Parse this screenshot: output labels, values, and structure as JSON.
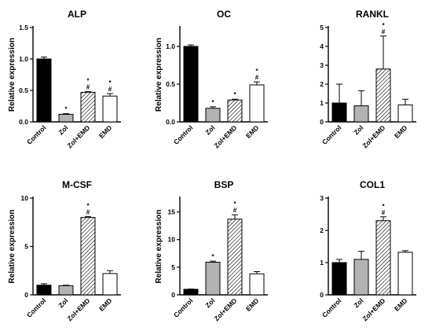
{
  "colors": {
    "control": "#000000",
    "zol": "#b3b3b3",
    "zol_emd": "hatched",
    "emd": "#ffffff",
    "axis": "#000000"
  },
  "chart_data": [
    {
      "type": "bar",
      "title": "ALP",
      "ylabel": "Relative expression",
      "categories": [
        "Control",
        "Zol",
        "Zol+EMD",
        "EMD"
      ],
      "values": [
        1.0,
        0.12,
        0.47,
        0.41
      ],
      "errors": [
        0.03,
        0.01,
        0.01,
        0.04
      ],
      "annotations": [
        "",
        "*",
        "*\n#",
        "*\n#"
      ],
      "ylim": [
        0,
        1.5
      ],
      "yticks": [
        "0.0",
        "0.5",
        "1.0",
        "1.5"
      ]
    },
    {
      "type": "bar",
      "title": "OC",
      "ylabel": "Relative expression",
      "categories": [
        "Control",
        "Zol",
        "Zol+EMD",
        "EMD"
      ],
      "values": [
        1.0,
        0.18,
        0.29,
        0.49
      ],
      "errors": [
        0.02,
        0.02,
        0.01,
        0.04
      ],
      "annotations": [
        "",
        "*",
        "*",
        "*\n#"
      ],
      "ylim": [
        0,
        1.25
      ],
      "yticks": [
        "0.0",
        "0.5",
        "1.0"
      ]
    },
    {
      "type": "bar",
      "title": "RANKL",
      "ylabel": "",
      "categories": [
        "Control",
        "Zol",
        "Zol+EMD",
        "EMD"
      ],
      "values": [
        1.0,
        0.85,
        2.8,
        0.9
      ],
      "errors": [
        1.0,
        0.8,
        1.75,
        0.3
      ],
      "annotations": [
        "",
        "",
        "*\n#",
        ""
      ],
      "ylim": [
        0,
        5
      ],
      "yticks": [
        "0",
        "1",
        "2",
        "3",
        "4",
        "5"
      ]
    },
    {
      "type": "bar",
      "title": "M-CSF",
      "ylabel": "Relative expression",
      "categories": [
        "Control",
        "Zol",
        "Zol+EMD",
        "EMD"
      ],
      "values": [
        1.0,
        0.95,
        8.0,
        2.2
      ],
      "errors": [
        0.15,
        0.05,
        0.1,
        0.3
      ],
      "annotations": [
        "",
        "",
        "*\n#",
        ""
      ],
      "ylim": [
        0,
        10
      ],
      "yticks": [
        "0",
        "5",
        "10"
      ]
    },
    {
      "type": "bar",
      "title": "BSP",
      "ylabel": "Relative expression",
      "categories": [
        "Control",
        "Zol",
        "Zol+EMD",
        "EMD"
      ],
      "values": [
        1.0,
        5.9,
        13.7,
        3.8
      ],
      "errors": [
        0.05,
        0.2,
        0.8,
        0.4
      ],
      "annotations": [
        "",
        "*",
        "*\n#",
        ""
      ],
      "ylim": [
        0,
        17.5
      ],
      "yticks": [
        "0",
        "5",
        "10",
        "15"
      ]
    },
    {
      "type": "bar",
      "title": "COL1",
      "ylabel": "",
      "categories": [
        "Control",
        "Zol",
        "Zol+EMD",
        "EMD"
      ],
      "values": [
        1.0,
        1.1,
        2.3,
        1.32
      ],
      "errors": [
        0.1,
        0.25,
        0.12,
        0.05
      ],
      "annotations": [
        "",
        "",
        "*\n#",
        ""
      ],
      "ylim": [
        0,
        3
      ],
      "yticks": [
        "0",
        "1",
        "2",
        "3"
      ]
    }
  ]
}
